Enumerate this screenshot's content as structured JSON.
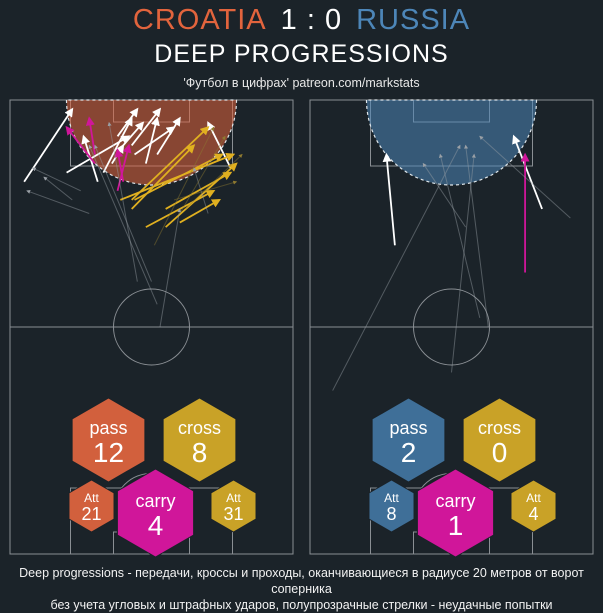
{
  "header": {
    "home_team": "CROATIA",
    "score": "1 : 0",
    "away_team": "RUSSIA",
    "subtitle": "DEEP PROGRESSIONS",
    "source": "'Футбол в цифрах' patreon.com/markstats"
  },
  "footnote": {
    "line1": "Deep progressions - передачи, кроссы и проходы, оканчивающиеся в радиусе 20 метров от ворот соперника",
    "line2": "без учета угловых и штрафных ударов, полупрозрачные стрелки - неудачные попытки"
  },
  "colors": {
    "background": "#1b2329",
    "home": "#e2643d",
    "away": "#4d86b8",
    "pass_home": "#d2603d",
    "pass_away": "#3f6f98",
    "cross": "#c9a227",
    "carry": "#d0169a",
    "pitch_line": "#8a8f94",
    "successful_pass": "#ffffff",
    "cross_arrow": "#e0b020"
  },
  "chart_data": [
    {
      "type": "scatter",
      "team": "CROATIA",
      "stats": [
        {
          "key": "pass",
          "label": "pass",
          "value": "12"
        },
        {
          "key": "cross",
          "label": "cross",
          "value": "8"
        },
        {
          "key": "carry",
          "label": "carry",
          "value": "4"
        },
        {
          "key": "att_left",
          "label": "Att",
          "value": "21"
        },
        {
          "key": "att_right",
          "label": "Att",
          "value": "31"
        }
      ],
      "arrows": [
        {
          "kind": "pass",
          "ok": true,
          "x": [
            22,
            5
          ],
          "y": [
            2,
            18
          ]
        },
        {
          "kind": "pass",
          "ok": true,
          "x": [
            26,
            31
          ],
          "y": [
            8,
            18
          ]
        },
        {
          "kind": "pass",
          "ok": true,
          "x": [
            40,
            36
          ],
          "y": [
            10,
            14
          ]
        },
        {
          "kind": "pass",
          "ok": true,
          "x": [
            43,
            33
          ],
          "y": [
            4,
            16
          ]
        },
        {
          "kind": "pass",
          "ok": true,
          "x": [
            42,
            20
          ],
          "y": [
            8,
            16
          ]
        },
        {
          "kind": "pass",
          "ok": true,
          "x": [
            45,
            38
          ],
          "y": [
            2,
            8
          ]
        },
        {
          "kind": "pass",
          "ok": true,
          "x": [
            47,
            40
          ],
          "y": [
            5,
            10
          ]
        },
        {
          "kind": "pass",
          "ok": true,
          "x": [
            52,
            48
          ],
          "y": [
            4,
            14
          ]
        },
        {
          "kind": "pass",
          "ok": true,
          "x": [
            53,
            43
          ],
          "y": [
            2,
            10
          ]
        },
        {
          "kind": "pass",
          "ok": true,
          "x": [
            58,
            44
          ],
          "y": [
            6,
            12
          ]
        },
        {
          "kind": "pass",
          "ok": true,
          "x": [
            60,
            52
          ],
          "y": [
            4,
            12
          ]
        },
        {
          "kind": "pass",
          "ok": true,
          "x": [
            70,
            78
          ],
          "y": [
            5,
            15
          ]
        },
        {
          "kind": "cross",
          "ok": true,
          "x": [
            79,
            39
          ],
          "y": [
            12,
            22
          ]
        },
        {
          "kind": "cross",
          "ok": true,
          "x": [
            75,
            44
          ],
          "y": [
            12,
            22
          ]
        },
        {
          "kind": "cross",
          "ok": true,
          "x": [
            70,
            43
          ],
          "y": [
            6,
            22
          ]
        },
        {
          "kind": "cross",
          "ok": true,
          "x": [
            65,
            43
          ],
          "y": [
            10,
            24
          ]
        },
        {
          "kind": "cross",
          "ok": true,
          "x": [
            78,
            55
          ],
          "y": [
            16,
            24
          ]
        },
        {
          "kind": "cross",
          "ok": true,
          "x": [
            72,
            48
          ],
          "y": [
            20,
            28
          ]
        },
        {
          "kind": "cross",
          "ok": true,
          "x": [
            74,
            60
          ],
          "y": [
            22,
            27
          ]
        },
        {
          "kind": "cross",
          "ok": true,
          "x": [
            80,
            55
          ],
          "y": [
            14,
            28
          ]
        },
        {
          "kind": "carry",
          "ok": true,
          "x": [
            20,
            30
          ],
          "y": [
            6,
            14
          ]
        },
        {
          "kind": "carry",
          "ok": true,
          "x": [
            28,
            30
          ],
          "y": [
            4,
            12
          ]
        },
        {
          "kind": "carry",
          "ok": true,
          "x": [
            38,
            40
          ],
          "y": [
            11,
            18
          ]
        },
        {
          "kind": "carry",
          "ok": true,
          "x": [
            42,
            38
          ],
          "y": [
            10,
            20
          ]
        },
        {
          "kind": "pass",
          "ok": false,
          "x": [
            8,
            25
          ],
          "y": [
            15,
            20
          ]
        },
        {
          "kind": "pass",
          "ok": false,
          "x": [
            12,
            22
          ],
          "y": [
            17,
            22
          ]
        },
        {
          "kind": "pass",
          "ok": false,
          "x": [
            6,
            28
          ],
          "y": [
            20,
            25
          ]
        },
        {
          "kind": "pass",
          "ok": false,
          "x": [
            30,
            50
          ],
          "y": [
            10,
            40
          ]
        },
        {
          "kind": "pass",
          "ok": false,
          "x": [
            28,
            52
          ],
          "y": [
            10,
            45
          ]
        },
        {
          "kind": "pass",
          "ok": false,
          "x": [
            60,
            53
          ],
          "y": [
            24,
            50
          ]
        },
        {
          "kind": "pass",
          "ok": false,
          "x": [
            65,
            70
          ],
          "y": [
            15,
            25
          ]
        },
        {
          "kind": "pass",
          "ok": false,
          "x": [
            35,
            45
          ],
          "y": [
            5,
            40
          ]
        },
        {
          "kind": "cross",
          "ok": false,
          "x": [
            80,
            58
          ],
          "y": [
            18,
            22
          ]
        },
        {
          "kind": "cross",
          "ok": false,
          "x": [
            76,
            60
          ],
          "y": [
            8,
            25
          ]
        },
        {
          "kind": "cross",
          "ok": false,
          "x": [
            72,
            51
          ],
          "y": [
            6,
            32
          ]
        },
        {
          "kind": "cross",
          "ok": false,
          "x": [
            82,
            62
          ],
          "y": [
            12,
            24
          ]
        }
      ]
    },
    {
      "type": "scatter",
      "team": "RUSSIA",
      "stats": [
        {
          "key": "pass",
          "label": "pass",
          "value": "2"
        },
        {
          "key": "cross",
          "label": "cross",
          "value": "0"
        },
        {
          "key": "carry",
          "label": "carry",
          "value": "1"
        },
        {
          "key": "att_left",
          "label": "Att",
          "value": "8"
        },
        {
          "key": "att_right",
          "label": "Att",
          "value": "4"
        }
      ],
      "arrows": [
        {
          "kind": "pass",
          "ok": true,
          "x": [
            27,
            30
          ],
          "y": [
            12,
            32
          ]
        },
        {
          "kind": "pass",
          "ok": true,
          "x": [
            72,
            82
          ],
          "y": [
            8,
            24
          ]
        },
        {
          "kind": "carry",
          "ok": true,
          "x": [
            76,
            76
          ],
          "y": [
            12,
            38
          ]
        },
        {
          "kind": "pass",
          "ok": false,
          "x": [
            53,
            8
          ],
          "y": [
            10,
            64
          ]
        },
        {
          "kind": "pass",
          "ok": false,
          "x": [
            58,
            50
          ],
          "y": [
            12,
            60
          ]
        },
        {
          "kind": "pass",
          "ok": false,
          "x": [
            46,
            60
          ],
          "y": [
            12,
            48
          ]
        },
        {
          "kind": "pass",
          "ok": false,
          "x": [
            60,
            92
          ],
          "y": [
            8,
            26
          ]
        },
        {
          "kind": "pass",
          "ok": false,
          "x": [
            40,
            55
          ],
          "y": [
            14,
            28
          ]
        },
        {
          "kind": "pass",
          "ok": false,
          "x": [
            55,
            63
          ],
          "y": [
            10,
            50
          ]
        }
      ]
    }
  ]
}
